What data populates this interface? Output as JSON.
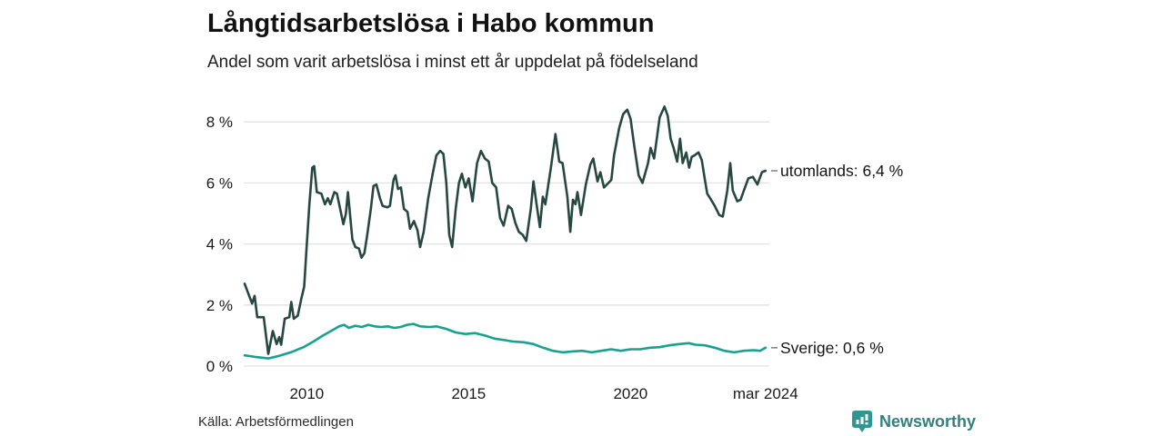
{
  "title": "Långtidsarbetslösa i Habo kommun",
  "subtitle": "Andel som varit arbetslösa i minst ett år uppdelat på födelseland",
  "source": "Källa: Arbetsförmedlingen",
  "branding": {
    "name": "Newsworthy",
    "icon": "bar-chart-speech-bubble",
    "color": "#2f9690",
    "text_color": "#337f7f"
  },
  "colors": {
    "utomlands": "#274741",
    "sverige": "#18a190",
    "grid": "#e2e2e2",
    "label_dash": "#888888"
  },
  "chart_data": {
    "type": "line",
    "title": "Långtidsarbetslösa i Habo kommun",
    "subtitle": "Andel som varit arbetslösa i minst ett år uppdelat på födelseland",
    "x_unit": "year",
    "y_unit": "percent",
    "xlim": [
      2008.0,
      2024.25
    ],
    "ylim": [
      0,
      8.6
    ],
    "grid": "horizontal",
    "legend_position": "right-of-line-end",
    "yticks": [
      {
        "v": 0,
        "label": "0 %"
      },
      {
        "v": 2,
        "label": "2 %"
      },
      {
        "v": 4,
        "label": "4 %"
      },
      {
        "v": 6,
        "label": "6 %"
      },
      {
        "v": 8,
        "label": "8 %"
      }
    ],
    "xticks": [
      {
        "t": 2010,
        "label": "2010"
      },
      {
        "t": 2015,
        "label": "2015"
      },
      {
        "t": 2020,
        "label": "2020"
      },
      {
        "t": 2024.17,
        "label": "mar 2024"
      }
    ],
    "series": [
      {
        "name": "utomlands",
        "end_label": "utomlands: 6,4 %",
        "end_value": "6,4 %",
        "color": "#274741",
        "points": [
          [
            2008.08,
            2.7
          ],
          [
            2008.22,
            2.3
          ],
          [
            2008.31,
            2.05
          ],
          [
            2008.39,
            2.3
          ],
          [
            2008.47,
            1.6
          ],
          [
            2008.67,
            1.6
          ],
          [
            2008.81,
            0.4
          ],
          [
            2008.95,
            1.15
          ],
          [
            2009.07,
            0.72
          ],
          [
            2009.15,
            0.95
          ],
          [
            2009.21,
            0.7
          ],
          [
            2009.32,
            1.55
          ],
          [
            2009.46,
            1.6
          ],
          [
            2009.52,
            2.1
          ],
          [
            2009.6,
            1.55
          ],
          [
            2009.72,
            1.65
          ],
          [
            2009.83,
            2.2
          ],
          [
            2009.92,
            2.6
          ],
          [
            2010.0,
            4.0
          ],
          [
            2010.08,
            5.3
          ],
          [
            2010.17,
            6.5
          ],
          [
            2010.23,
            6.55
          ],
          [
            2010.31,
            5.7
          ],
          [
            2010.45,
            5.65
          ],
          [
            2010.56,
            5.3
          ],
          [
            2010.65,
            5.5
          ],
          [
            2010.73,
            5.3
          ],
          [
            2010.85,
            5.7
          ],
          [
            2010.93,
            5.65
          ],
          [
            2011.02,
            5.2
          ],
          [
            2011.13,
            4.65
          ],
          [
            2011.21,
            5.0
          ],
          [
            2011.27,
            5.7
          ],
          [
            2011.41,
            4.15
          ],
          [
            2011.5,
            3.9
          ],
          [
            2011.61,
            3.85
          ],
          [
            2011.69,
            3.55
          ],
          [
            2011.78,
            3.7
          ],
          [
            2011.86,
            4.25
          ],
          [
            2011.98,
            5.15
          ],
          [
            2012.06,
            5.9
          ],
          [
            2012.15,
            5.95
          ],
          [
            2012.26,
            5.5
          ],
          [
            2012.34,
            5.25
          ],
          [
            2012.49,
            5.2
          ],
          [
            2012.57,
            5.25
          ],
          [
            2012.68,
            6.1
          ],
          [
            2012.74,
            6.25
          ],
          [
            2012.82,
            5.8
          ],
          [
            2012.91,
            5.85
          ],
          [
            2013.0,
            5.15
          ],
          [
            2013.11,
            5.05
          ],
          [
            2013.19,
            4.5
          ],
          [
            2013.31,
            4.75
          ],
          [
            2013.42,
            4.45
          ],
          [
            2013.5,
            3.9
          ],
          [
            2013.61,
            4.4
          ],
          [
            2013.75,
            5.5
          ],
          [
            2013.89,
            6.3
          ],
          [
            2014.0,
            6.9
          ],
          [
            2014.12,
            7.05
          ],
          [
            2014.22,
            6.95
          ],
          [
            2014.31,
            6.0
          ],
          [
            2014.4,
            4.3
          ],
          [
            2014.49,
            3.9
          ],
          [
            2014.6,
            5.15
          ],
          [
            2014.7,
            6.0
          ],
          [
            2014.79,
            6.3
          ],
          [
            2014.9,
            5.85
          ],
          [
            2015.0,
            6.15
          ],
          [
            2015.12,
            5.4
          ],
          [
            2015.26,
            6.65
          ],
          [
            2015.38,
            7.05
          ],
          [
            2015.5,
            6.8
          ],
          [
            2015.62,
            6.7
          ],
          [
            2015.73,
            6.0
          ],
          [
            2015.85,
            5.85
          ],
          [
            2015.97,
            4.85
          ],
          [
            2016.08,
            4.6
          ],
          [
            2016.22,
            5.25
          ],
          [
            2016.33,
            5.15
          ],
          [
            2016.44,
            4.7
          ],
          [
            2016.55,
            4.4
          ],
          [
            2016.67,
            4.3
          ],
          [
            2016.78,
            4.1
          ],
          [
            2016.92,
            5.15
          ],
          [
            2017.0,
            6.05
          ],
          [
            2017.09,
            5.35
          ],
          [
            2017.2,
            4.55
          ],
          [
            2017.29,
            5.55
          ],
          [
            2017.37,
            5.3
          ],
          [
            2017.54,
            6.5
          ],
          [
            2017.68,
            7.6
          ],
          [
            2017.8,
            6.7
          ],
          [
            2017.9,
            6.65
          ],
          [
            2018.05,
            5.55
          ],
          [
            2018.14,
            4.4
          ],
          [
            2018.22,
            5.45
          ],
          [
            2018.3,
            5.3
          ],
          [
            2018.36,
            5.7
          ],
          [
            2018.47,
            4.95
          ],
          [
            2018.62,
            5.95
          ],
          [
            2018.76,
            6.6
          ],
          [
            2018.85,
            6.8
          ],
          [
            2018.98,
            6.05
          ],
          [
            2019.07,
            6.35
          ],
          [
            2019.18,
            5.85
          ],
          [
            2019.27,
            5.95
          ],
          [
            2019.41,
            6.1
          ],
          [
            2019.49,
            6.9
          ],
          [
            2019.65,
            7.8
          ],
          [
            2019.77,
            8.25
          ],
          [
            2019.9,
            8.4
          ],
          [
            2020.0,
            8.1
          ],
          [
            2020.11,
            7.25
          ],
          [
            2020.25,
            6.25
          ],
          [
            2020.37,
            6.0
          ],
          [
            2020.54,
            6.65
          ],
          [
            2020.62,
            7.15
          ],
          [
            2020.73,
            6.8
          ],
          [
            2020.9,
            8.15
          ],
          [
            2021.05,
            8.5
          ],
          [
            2021.15,
            8.2
          ],
          [
            2021.24,
            7.45
          ],
          [
            2021.33,
            7.15
          ],
          [
            2021.44,
            6.7
          ],
          [
            2021.53,
            7.45
          ],
          [
            2021.61,
            6.65
          ],
          [
            2021.72,
            7.0
          ],
          [
            2021.81,
            6.5
          ],
          [
            2021.89,
            6.85
          ],
          [
            2021.97,
            6.9
          ],
          [
            2022.1,
            7.0
          ],
          [
            2022.2,
            6.75
          ],
          [
            2022.29,
            6.15
          ],
          [
            2022.37,
            5.65
          ],
          [
            2022.46,
            5.5
          ],
          [
            2022.6,
            5.25
          ],
          [
            2022.74,
            4.95
          ],
          [
            2022.85,
            4.9
          ],
          [
            2022.99,
            5.75
          ],
          [
            2023.08,
            6.65
          ],
          [
            2023.16,
            5.75
          ],
          [
            2023.3,
            5.4
          ],
          [
            2023.4,
            5.45
          ],
          [
            2023.5,
            5.75
          ],
          [
            2023.64,
            6.15
          ],
          [
            2023.78,
            6.2
          ],
          [
            2023.92,
            5.95
          ],
          [
            2024.06,
            6.35
          ],
          [
            2024.17,
            6.4
          ]
        ]
      },
      {
        "name": "Sverige",
        "end_label": "Sverige: 0,6 %",
        "end_value": "0,6 %",
        "color": "#18a190",
        "points": [
          [
            2008.08,
            0.35
          ],
          [
            2008.4,
            0.3
          ],
          [
            2008.81,
            0.25
          ],
          [
            2009.1,
            0.32
          ],
          [
            2009.5,
            0.45
          ],
          [
            2009.9,
            0.62
          ],
          [
            2010.2,
            0.8
          ],
          [
            2010.5,
            1.0
          ],
          [
            2010.75,
            1.15
          ],
          [
            2011.0,
            1.3
          ],
          [
            2011.15,
            1.35
          ],
          [
            2011.3,
            1.25
          ],
          [
            2011.5,
            1.32
          ],
          [
            2011.7,
            1.28
          ],
          [
            2011.9,
            1.35
          ],
          [
            2012.1,
            1.3
          ],
          [
            2012.3,
            1.28
          ],
          [
            2012.5,
            1.3
          ],
          [
            2012.7,
            1.25
          ],
          [
            2012.9,
            1.28
          ],
          [
            2013.1,
            1.35
          ],
          [
            2013.3,
            1.38
          ],
          [
            2013.5,
            1.3
          ],
          [
            2013.8,
            1.28
          ],
          [
            2014.0,
            1.3
          ],
          [
            2014.3,
            1.22
          ],
          [
            2014.6,
            1.1
          ],
          [
            2014.9,
            1.05
          ],
          [
            2015.2,
            1.08
          ],
          [
            2015.5,
            1.0
          ],
          [
            2015.8,
            0.9
          ],
          [
            2016.1,
            0.85
          ],
          [
            2016.4,
            0.8
          ],
          [
            2016.7,
            0.78
          ],
          [
            2017.0,
            0.72
          ],
          [
            2017.3,
            0.6
          ],
          [
            2017.6,
            0.5
          ],
          [
            2017.9,
            0.45
          ],
          [
            2018.2,
            0.48
          ],
          [
            2018.5,
            0.5
          ],
          [
            2018.8,
            0.45
          ],
          [
            2019.1,
            0.5
          ],
          [
            2019.4,
            0.55
          ],
          [
            2019.7,
            0.5
          ],
          [
            2020.0,
            0.55
          ],
          [
            2020.3,
            0.55
          ],
          [
            2020.6,
            0.6
          ],
          [
            2020.9,
            0.62
          ],
          [
            2021.2,
            0.68
          ],
          [
            2021.5,
            0.72
          ],
          [
            2021.8,
            0.75
          ],
          [
            2022.0,
            0.7
          ],
          [
            2022.3,
            0.68
          ],
          [
            2022.6,
            0.6
          ],
          [
            2022.9,
            0.5
          ],
          [
            2023.2,
            0.45
          ],
          [
            2023.5,
            0.5
          ],
          [
            2023.8,
            0.52
          ],
          [
            2024.0,
            0.5
          ],
          [
            2024.17,
            0.6
          ]
        ]
      }
    ]
  }
}
